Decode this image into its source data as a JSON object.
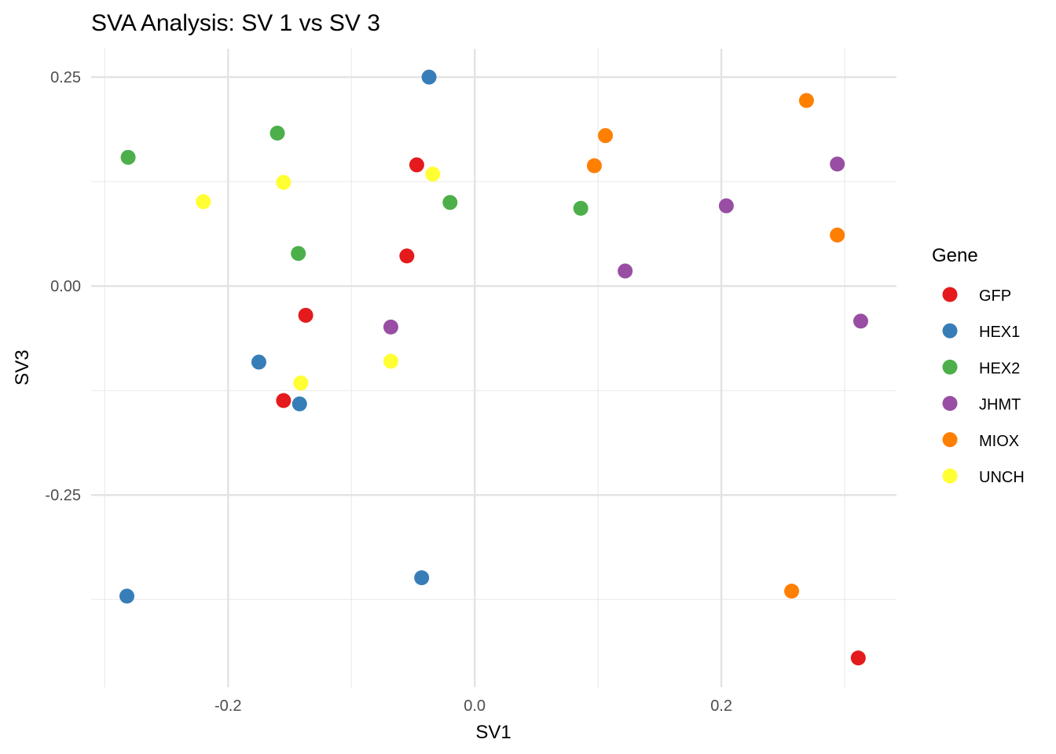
{
  "chart_data": {
    "type": "scatter",
    "title": "SVA Analysis: SV 1  vs SV 3",
    "xlabel": "SV1",
    "ylabel": "SV3",
    "xlim": [
      -0.311,
      0.342
    ],
    "ylim": [
      -0.48,
      0.284
    ],
    "x_ticks": [
      -0.2,
      0.0,
      0.2
    ],
    "x_tick_labels": [
      "-0.2",
      "0.0",
      "0.2"
    ],
    "y_ticks": [
      0.25,
      0.0,
      -0.25
    ],
    "y_tick_labels": [
      "0.25",
      "0.00",
      "-0.25"
    ],
    "grid": true,
    "legend": {
      "title": "Gene",
      "placement": "right"
    },
    "series": [
      {
        "name": "GFP",
        "color": "#E41A1C",
        "points": [
          [
            -0.047,
            0.145
          ],
          [
            -0.055,
            0.036
          ],
          [
            -0.137,
            -0.035
          ],
          [
            -0.155,
            -0.137
          ],
          [
            0.311,
            -0.445
          ]
        ]
      },
      {
        "name": "HEX1",
        "color": "#377EB8",
        "points": [
          [
            -0.037,
            0.25
          ],
          [
            -0.175,
            -0.091
          ],
          [
            -0.142,
            -0.141
          ],
          [
            -0.282,
            -0.371
          ],
          [
            -0.043,
            -0.349
          ]
        ]
      },
      {
        "name": "HEX2",
        "color": "#4DAF4A",
        "points": [
          [
            -0.281,
            0.154
          ],
          [
            -0.16,
            0.183
          ],
          [
            -0.143,
            0.039
          ],
          [
            -0.02,
            0.1
          ],
          [
            0.086,
            0.093
          ]
        ]
      },
      {
        "name": "JHMT",
        "color": "#984EA3",
        "points": [
          [
            -0.068,
            -0.049
          ],
          [
            0.122,
            0.018
          ],
          [
            0.204,
            0.096
          ],
          [
            0.294,
            0.146
          ],
          [
            0.313,
            -0.042
          ]
        ]
      },
      {
        "name": "MIOX",
        "color": "#FF7F00",
        "points": [
          [
            0.269,
            0.222
          ],
          [
            0.106,
            0.18
          ],
          [
            0.097,
            0.144
          ],
          [
            0.294,
            0.061
          ],
          [
            0.257,
            -0.365
          ]
        ]
      },
      {
        "name": "UNCH",
        "color": "#FFFF33",
        "points": [
          [
            -0.22,
            0.101
          ],
          [
            -0.155,
            0.124
          ],
          [
            -0.034,
            0.134
          ],
          [
            -0.141,
            -0.116
          ],
          [
            -0.068,
            -0.09
          ]
        ]
      }
    ]
  }
}
